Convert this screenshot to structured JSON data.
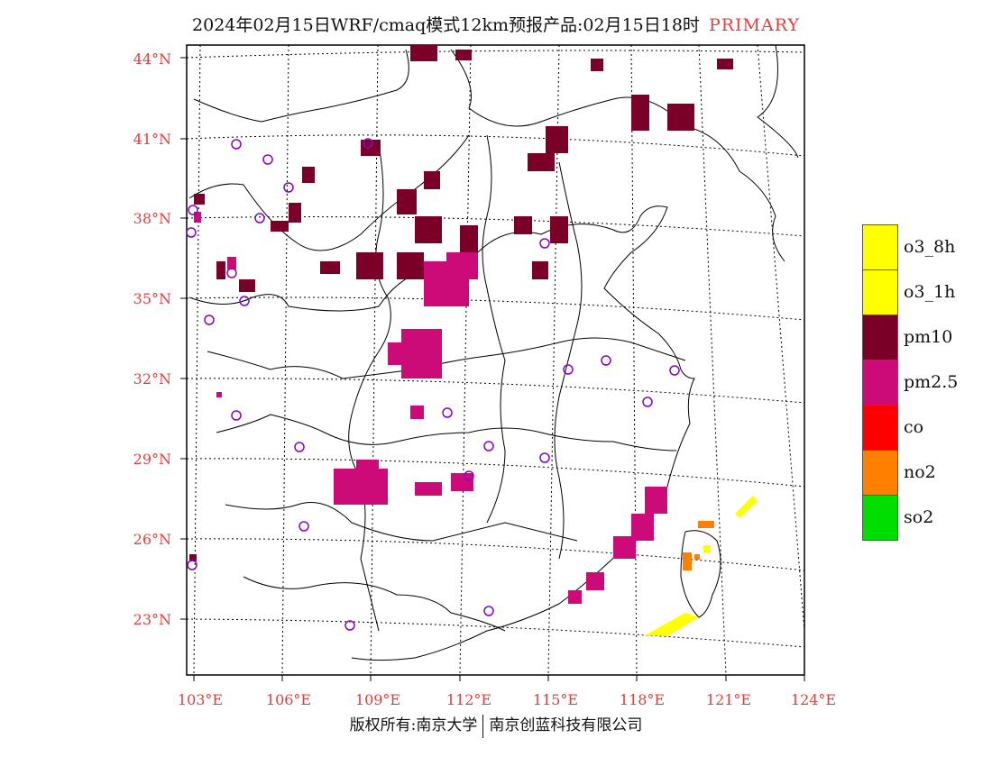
{
  "title": {
    "text": "2024年02月15日WRF/cmaq模式12km预报产品:02月15日18时",
    "tag": "PRIMARY"
  },
  "lat_labels": [
    "44°N",
    "41°N",
    "38°N",
    "35°N",
    "32°N",
    "29°N",
    "26°N",
    "23°N"
  ],
  "lon_labels": [
    "103°E",
    "106°E",
    "109°E",
    "112°E",
    "115°E",
    "118°E",
    "121°E",
    "124°E"
  ],
  "legend": [
    {
      "label": "o3_8h",
      "color": "#ffff00"
    },
    {
      "label": "o3_1h",
      "color": "#ffff00"
    },
    {
      "label": "pm10",
      "color": "#7a0028"
    },
    {
      "label": "pm2.5",
      "color": "#cc0a78"
    },
    {
      "label": "co",
      "color": "#ff0000"
    },
    {
      "label": "no2",
      "color": "#ff7f00"
    },
    {
      "label": "so2",
      "color": "#00dd00"
    }
  ],
  "footer": {
    "left": "版权所有:南京大学",
    "right": "南京创蓝科技有限公司"
  }
}
